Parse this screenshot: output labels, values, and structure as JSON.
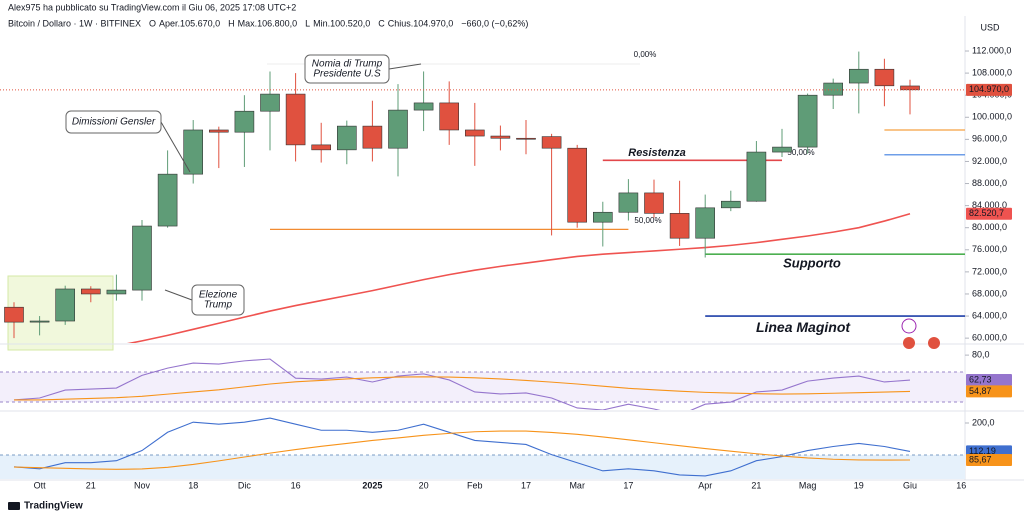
{
  "header": {
    "author_line": "Alex975 ha pubblicato su TradingView.com il Giu 06, 2025 17:08 UTC+2"
  },
  "chart_data": {
    "type": "candlestick",
    "title": "Bitcoin / Dollaro · 1W · BITFINEX",
    "legend": [
      {
        "key": "O",
        "text": "Aper.105.670,0"
      },
      {
        "key": "H",
        "text": "Max.106.800,0"
      },
      {
        "key": "L",
        "text": "Min.100.520,0"
      },
      {
        "key": "C",
        "text": "Chius.104.970,0"
      }
    ],
    "change": "−660,0 (−0,62%)",
    "currency": "USD",
    "up_color": "#5f9c77",
    "down_color": "#e0513f",
    "ylim": [
      59300,
      117980
    ],
    "yticks": [
      {
        "value": 60000,
        "label": "60.000,0"
      },
      {
        "value": 64000,
        "label": "64.000,0"
      },
      {
        "value": 68000,
        "label": "68.000,0"
      },
      {
        "value": 72000,
        "label": "72.000,0"
      },
      {
        "value": 76000,
        "label": "76.000,0"
      },
      {
        "value": 80000,
        "label": "80.000,0"
      },
      {
        "value": 84000,
        "label": "84.000,0"
      },
      {
        "value": 88000,
        "label": "88.000,0"
      },
      {
        "value": 92000,
        "label": "92.000,0"
      },
      {
        "value": 96000,
        "label": "96.000,0"
      },
      {
        "value": 100000,
        "label": "100.000,0"
      },
      {
        "value": 104000,
        "label": "104.000,0"
      },
      {
        "value": 108000,
        "label": "108.000,0"
      },
      {
        "value": 112000,
        "label": "112.000,0"
      }
    ],
    "xticks": [
      {
        "value": 1,
        "label": "Ott"
      },
      {
        "value": 3,
        "label": "21"
      },
      {
        "value": 5,
        "label": "Nov"
      },
      {
        "value": 7,
        "label": "18"
      },
      {
        "value": 9,
        "label": "Dic"
      },
      {
        "value": 11,
        "label": "16"
      },
      {
        "value": 14,
        "label": "2025"
      },
      {
        "value": 16,
        "label": "20"
      },
      {
        "value": 18,
        "label": "Feb"
      },
      {
        "value": 20,
        "label": "17"
      },
      {
        "value": 22,
        "label": "Mar"
      },
      {
        "value": 24,
        "label": "17"
      },
      {
        "value": 27,
        "label": "Apr"
      },
      {
        "value": 29,
        "label": "21"
      },
      {
        "value": 31,
        "label": "Mag"
      },
      {
        "value": 33,
        "label": "19"
      },
      {
        "value": 35,
        "label": "Giu"
      },
      {
        "value": 37,
        "label": "16"
      }
    ],
    "candles": {
      "open": [
        65600,
        62900,
        63100,
        68900,
        68000,
        68700,
        80300,
        89700,
        97700,
        97300,
        101100,
        104200,
        95000,
        94100,
        98400,
        94400,
        101300,
        102600,
        97700,
        96600,
        96200,
        96500,
        94400,
        81000,
        82800,
        86300,
        82600,
        78100,
        83600,
        84800,
        93700,
        94600,
        104000,
        106200,
        108700,
        105670
      ],
      "high": [
        66500,
        64000,
        69500,
        69400,
        71500,
        81400,
        94000,
        99500,
        98300,
        104000,
        108300,
        108000,
        99000,
        99400,
        103000,
        106000,
        108300,
        106500,
        102600,
        98500,
        99500,
        97000,
        95000,
        84700,
        88800,
        88700,
        88500,
        86000,
        86700,
        95700,
        97900,
        104300,
        107000,
        111900,
        110600,
        106800
      ],
      "low": [
        60000,
        60500,
        62400,
        66500,
        66800,
        66800,
        80000,
        88000,
        90800,
        91000,
        94000,
        92000,
        91800,
        91500,
        92000,
        89300,
        97500,
        95000,
        91200,
        94000,
        93300,
        78600,
        80000,
        76600,
        81300,
        81800,
        76700,
        74600,
        83000,
        84700,
        92800,
        93400,
        101500,
        100700,
        102000,
        100520
      ],
      "close": [
        62900,
        63100,
        68900,
        68000,
        68700,
        80300,
        89700,
        97700,
        97300,
        101100,
        104200,
        95000,
        94100,
        98400,
        94400,
        101300,
        102600,
        97700,
        96600,
        96200,
        96100,
        94400,
        81000,
        82800,
        86300,
        82600,
        78100,
        83600,
        84800,
        93700,
        94600,
        104000,
        106200,
        108700,
        105700,
        104970
      ],
      "value_labels": {
        "35": "104.970,0"
      }
    },
    "moving_average": {
      "color": "#ef5350",
      "values": [
        null,
        null,
        null,
        57800,
        58600,
        59500,
        60500,
        61600,
        62700,
        63800,
        64900,
        65900,
        66800,
        67700,
        68600,
        69600,
        70600,
        71500,
        72300,
        73000,
        73600,
        74200,
        74800,
        75200,
        75500,
        75800,
        76100,
        76400,
        76800,
        77300,
        77900,
        78500,
        79200,
        80000,
        81200,
        82520.7
      ],
      "last_label": "82.520,7"
    },
    "levels": [
      {
        "value": 79700,
        "color": "#f28b31",
        "from": 10,
        "to": 24
      },
      {
        "text": "Resistenza",
        "value": 92200,
        "color": "#e2474b",
        "from": 23,
        "to": 30
      },
      {
        "text": "Supporto",
        "value": 75200,
        "color": "#4caf50",
        "from": 27,
        "to": 37.2
      },
      {
        "text": "Linea Maginot",
        "value": 64000,
        "color": "#1e3fa8",
        "from": 27,
        "to": 37.2
      },
      {
        "value": 97700,
        "color": "#f5a142",
        "from": 34,
        "to": 37.2
      },
      {
        "value": 93200,
        "color": "#3f7fe0",
        "from": 34,
        "to": 37.2
      }
    ],
    "annotations": [
      {
        "lines": [
          "Nomia di Trump",
          "Presidente U.S"
        ]
      },
      {
        "lines": [
          "Dimissioni Gensler"
        ]
      },
      {
        "lines": [
          "Elezione",
          "Trump"
        ]
      }
    ],
    "fib_labels": [
      "0,00%",
      "50,00%",
      "50,00%"
    ],
    "indicators": [
      {
        "ylim": [
          42,
          87
        ],
        "yticks": [
          {
            "value": 80,
            "label": "80,0"
          }
        ],
        "lines": [
          {
            "color": "#9575cd",
            "values": [
              49,
              50.3,
              55.8,
              56.5,
              57.2,
              66,
              71,
              74.5,
              73.8,
              76,
              77.3,
              64,
              63.4,
              64.8,
              61.4,
              65.5,
              67,
              62.8,
              54.5,
              53.1,
              53.8,
              50.3,
              43.4,
              42,
              46,
              42.7,
              38.5,
              46,
              47.5,
              54.5,
              55.8,
              62,
              64.1,
              65.5,
              61.4,
              62.73
            ],
            "last_label": "62,73"
          },
          {
            "color": "#f7931a",
            "values": [
              49,
              49,
              49.5,
              50,
              50.5,
              51.5,
              53,
              54.5,
              56,
              58,
              60,
              61.5,
              62.5,
              63.5,
              64.3,
              64.8,
              65,
              64.8,
              64.3,
              63.5,
              62.5,
              61.3,
              60,
              58.5,
              57,
              56,
              55,
              54.2,
              53.7,
              53.3,
              53,
              53.2,
              53.6,
              54,
              54.4,
              54.87
            ],
            "last_label": "54,87"
          }
        ]
      },
      {
        "ylim": [
          27,
          234
        ],
        "yticks": [
          {
            "value": 200,
            "label": "200,0"
          }
        ],
        "lines": [
          {
            "color": "#3f6fcf",
            "values": [
              64.7,
              58.4,
              77.3,
              77.3,
              83.5,
              114.9,
              171.3,
              202.6,
              196.4,
              202.6,
              215.2,
              196.4,
              177.6,
              177.6,
              171.3,
              177.6,
              196.4,
              171.3,
              146.2,
              140,
              133.7,
              102.3,
              77.3,
              52.2,
              58.4,
              52.2,
              39.6,
              36.5,
              52.2,
              83.5,
              96.1,
              114.9,
              127.4,
              136.8,
              127.4,
              112.19
            ],
            "last_label": "112,19"
          },
          {
            "color": "#f7931a",
            "values": [
              64,
              62,
              60,
              58,
              57,
              58,
              63,
              72,
              83,
              95,
              107,
              118,
              128,
              137,
              146,
              154,
              162,
              168,
              173,
              175,
              175,
              171,
              165,
              157,
              148,
              139,
              130,
              121,
              113,
              105,
              98,
              92,
              88,
              86,
              85.5,
              85.67
            ],
            "last_label": "85,67"
          }
        ]
      }
    ]
  },
  "footer": {
    "brand": "TradingView"
  }
}
